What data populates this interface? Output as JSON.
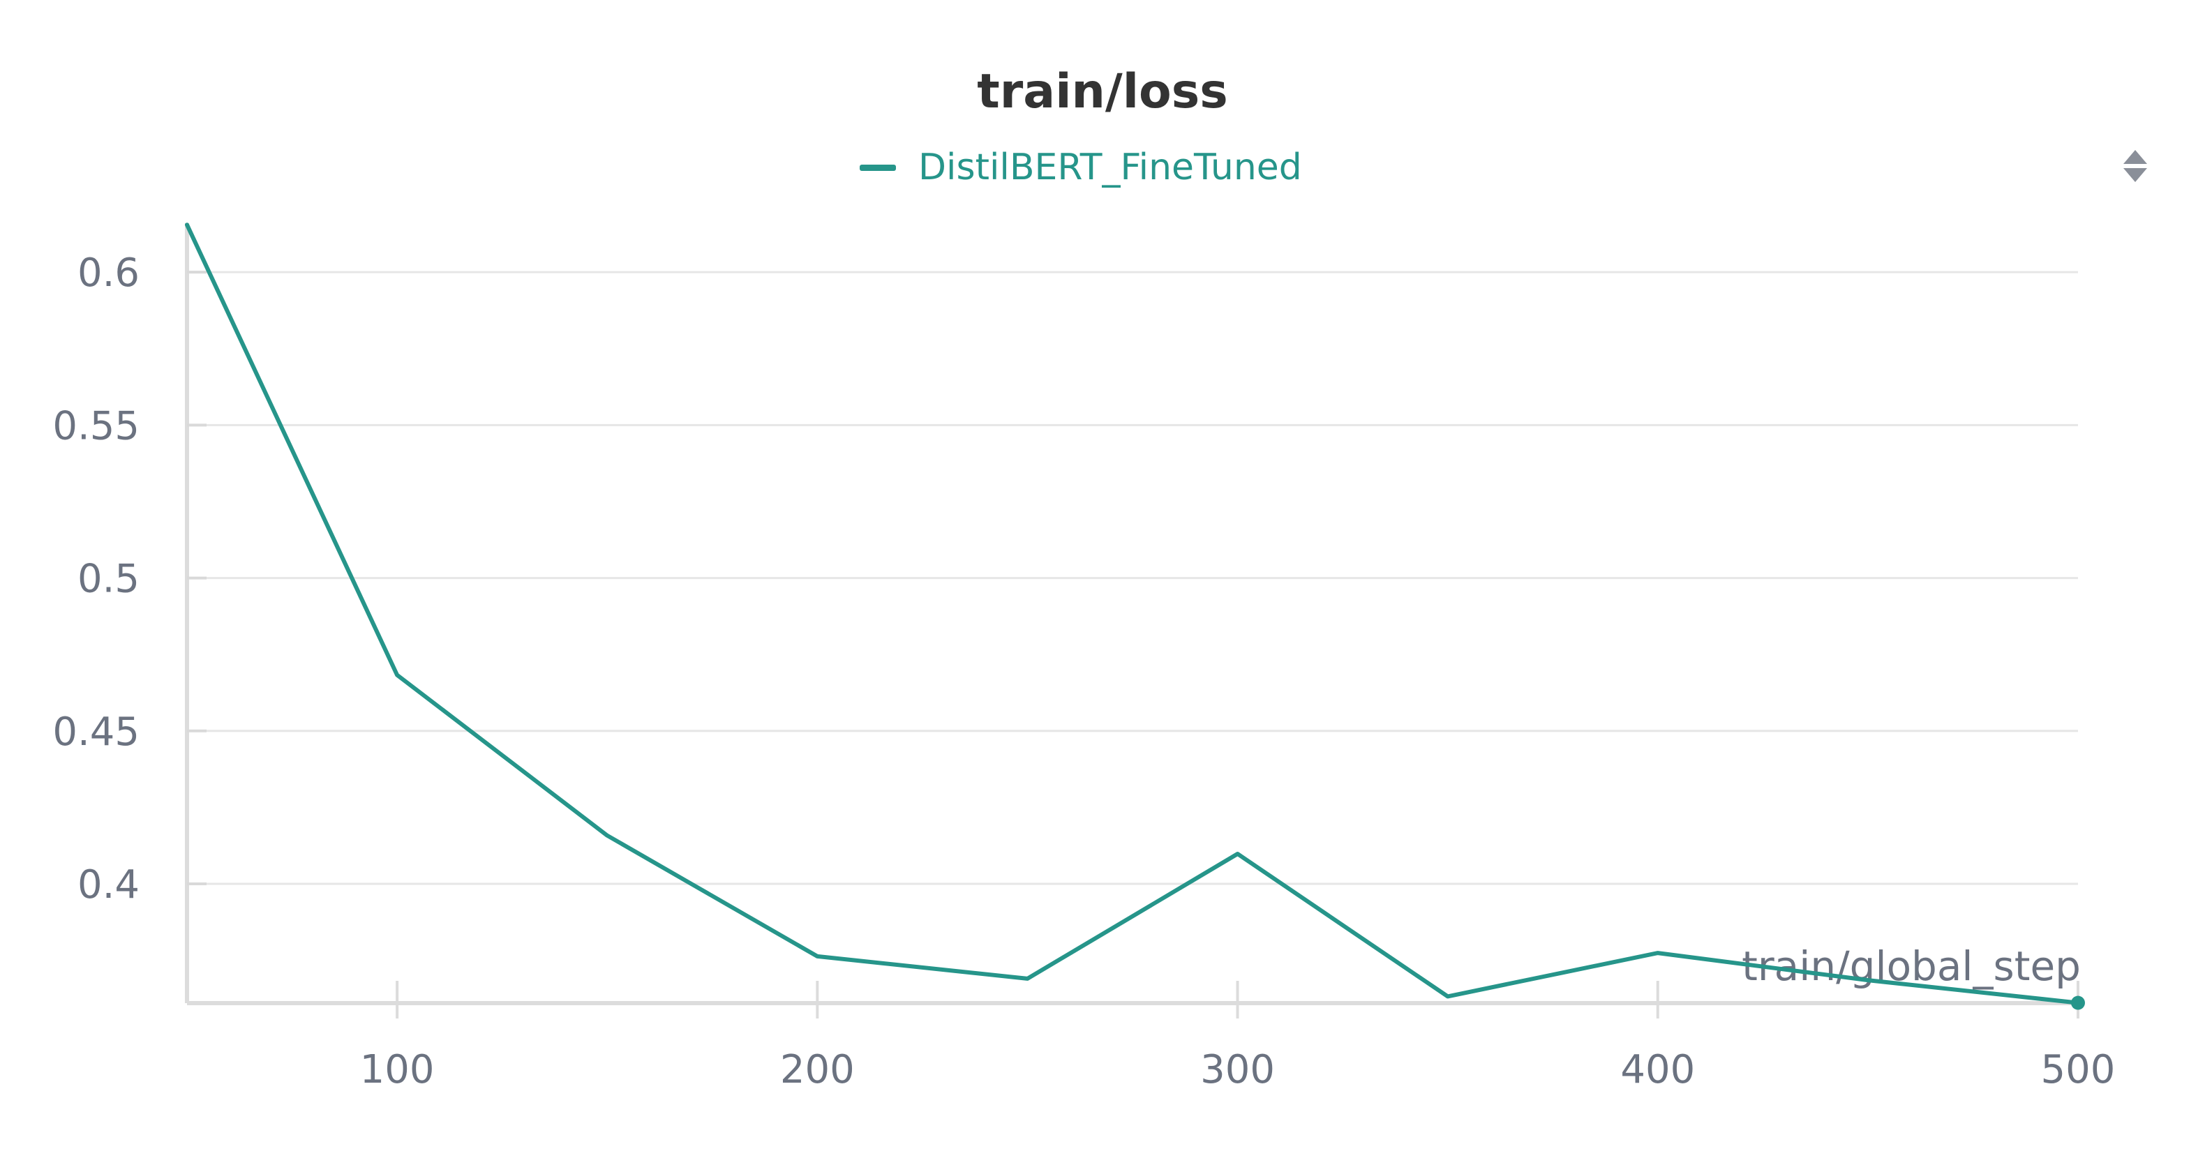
{
  "panel": {
    "sort_icon": "sort-updown-icon"
  },
  "chart_data": {
    "type": "line",
    "title": "train/loss",
    "xlabel": "train/global_step",
    "ylabel": "",
    "xlim": [
      50,
      500
    ],
    "ylim": [
      0.361,
      0.616
    ],
    "x_ticks": [
      100,
      200,
      300,
      400,
      500
    ],
    "x_tick_labels": [
      "100",
      "200",
      "300",
      "400",
      "500"
    ],
    "y_ticks": [
      0.4,
      0.45,
      0.5,
      0.55,
      0.6
    ],
    "y_tick_labels": [
      "0.4",
      "0.45",
      "0.5",
      "0.55",
      "0.6"
    ],
    "grid": true,
    "legend_position": "top-center",
    "series": [
      {
        "name": "DistilBERT_FineTuned",
        "color": "#26958a",
        "x": [
          50,
          100,
          150,
          200,
          250,
          300,
          350,
          400,
          450,
          500
        ],
        "y": [
          0.6155,
          0.4683,
          0.4158,
          0.3763,
          0.369,
          0.4098,
          0.3632,
          0.3774,
          0.3685,
          0.3611
        ]
      }
    ]
  }
}
